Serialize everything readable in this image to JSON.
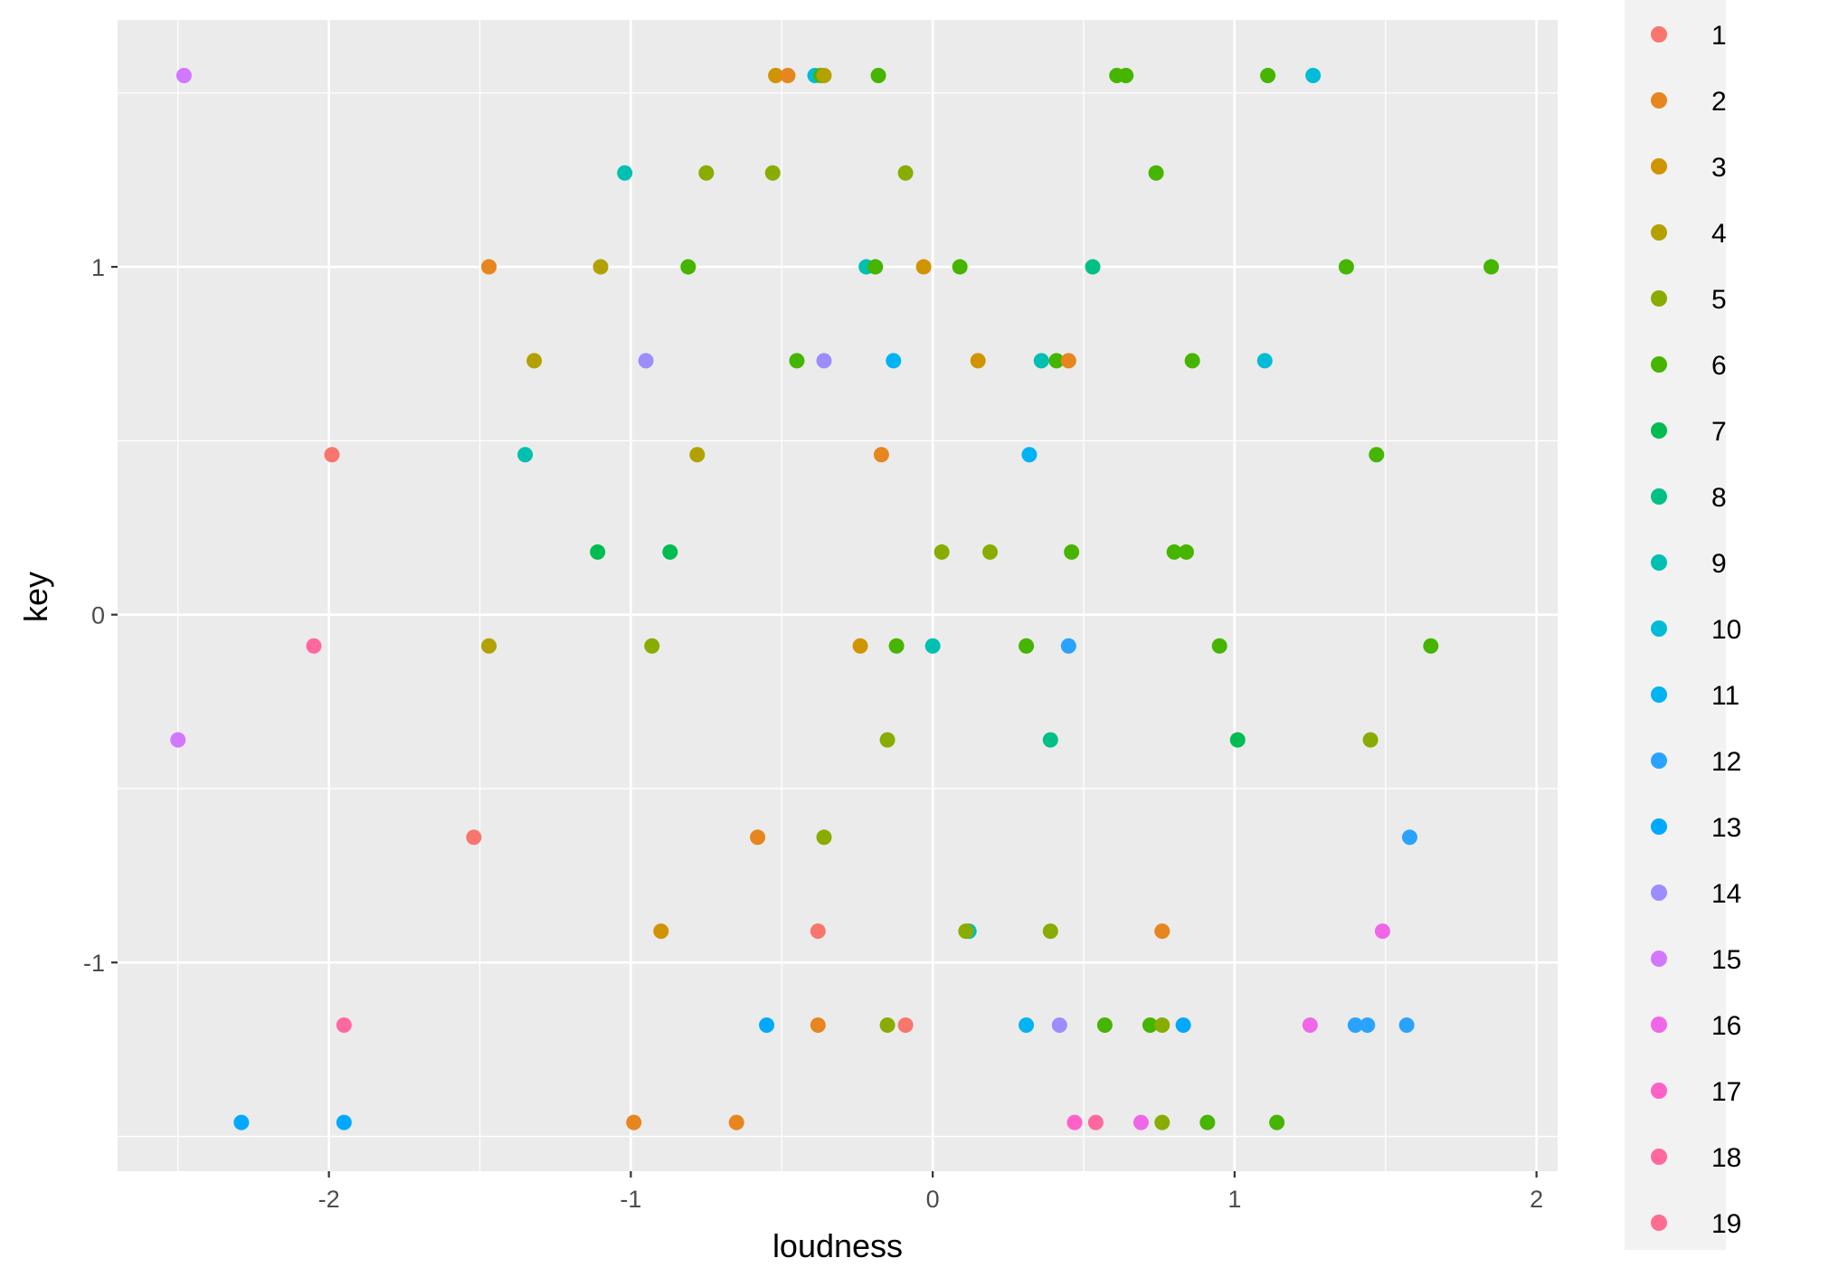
{
  "chart_data": {
    "type": "scatter",
    "title": "",
    "xlabel": "loudness",
    "ylabel": "key",
    "xlim": [
      -2.7,
      2.07
    ],
    "ylim": [
      -1.6,
      1.71
    ],
    "x_ticks": [
      -2,
      -1,
      0,
      1,
      2
    ],
    "x_tick_labels": [
      "-2",
      "-1",
      "0",
      "1",
      "2"
    ],
    "y_ticks": [
      -1,
      0,
      1
    ],
    "y_tick_labels": [
      "-1",
      "0",
      "1"
    ],
    "grid": true,
    "legend_position": "right",
    "legend_labels": [
      "1",
      "2",
      "3",
      "4",
      "5",
      "6",
      "7",
      "8",
      "9",
      "10",
      "11",
      "12",
      "13",
      "14",
      "15",
      "16",
      "17",
      "18",
      "19"
    ],
    "colors": [
      "#F8766D",
      "#E7851E",
      "#D09400",
      "#B2A100",
      "#89AC00",
      "#45B500",
      "#00BC51",
      "#00C087",
      "#00C0B2",
      "#00BCD6",
      "#00B3F2",
      "#29A3FF",
      "#00A9FF",
      "#9C8DFF",
      "#D277FF",
      "#F166E8",
      "#FF61C7",
      "#FF689E",
      "#FF6C91"
    ],
    "points": [
      {
        "group": 15,
        "x": -2.48,
        "y": 1.55
      },
      {
        "group": 3,
        "x": -0.52,
        "y": 1.55
      },
      {
        "group": 2,
        "x": -0.48,
        "y": 1.55
      },
      {
        "group": 10,
        "x": -0.39,
        "y": 1.55
      },
      {
        "group": 6,
        "x": -0.37,
        "y": 1.55
      },
      {
        "group": 4,
        "x": -0.36,
        "y": 1.55
      },
      {
        "group": 6,
        "x": -0.18,
        "y": 1.55
      },
      {
        "group": 6,
        "x": 0.61,
        "y": 1.55
      },
      {
        "group": 6,
        "x": 0.64,
        "y": 1.55
      },
      {
        "group": 6,
        "x": 1.11,
        "y": 1.55
      },
      {
        "group": 10,
        "x": 1.26,
        "y": 1.55
      },
      {
        "group": 9,
        "x": -1.02,
        "y": 1.27
      },
      {
        "group": 5,
        "x": -0.75,
        "y": 1.27
      },
      {
        "group": 5,
        "x": -0.53,
        "y": 1.27
      },
      {
        "group": 5,
        "x": -0.09,
        "y": 1.27
      },
      {
        "group": 6,
        "x": 0.74,
        "y": 1.27
      },
      {
        "group": 2,
        "x": -1.47,
        "y": 1.0
      },
      {
        "group": 4,
        "x": -1.1,
        "y": 1.0
      },
      {
        "group": 6,
        "x": -0.81,
        "y": 1.0
      },
      {
        "group": 9,
        "x": -0.22,
        "y": 1.0
      },
      {
        "group": 6,
        "x": -0.19,
        "y": 1.0
      },
      {
        "group": 3,
        "x": -0.03,
        "y": 1.0
      },
      {
        "group": 6,
        "x": 0.09,
        "y": 1.0
      },
      {
        "group": 8,
        "x": 0.53,
        "y": 1.0
      },
      {
        "group": 6,
        "x": 1.37,
        "y": 1.0
      },
      {
        "group": 6,
        "x": 1.85,
        "y": 1.0
      },
      {
        "group": 4,
        "x": -1.32,
        "y": 0.73
      },
      {
        "group": 14,
        "x": -0.95,
        "y": 0.73
      },
      {
        "group": 6,
        "x": -0.45,
        "y": 0.73
      },
      {
        "group": 14,
        "x": -0.36,
        "y": 0.73
      },
      {
        "group": 11,
        "x": -0.13,
        "y": 0.73
      },
      {
        "group": 3,
        "x": 0.15,
        "y": 0.73
      },
      {
        "group": 9,
        "x": 0.36,
        "y": 0.73
      },
      {
        "group": 6,
        "x": 0.41,
        "y": 0.73
      },
      {
        "group": 2,
        "x": 0.45,
        "y": 0.73
      },
      {
        "group": 6,
        "x": 0.86,
        "y": 0.73
      },
      {
        "group": 10,
        "x": 1.1,
        "y": 0.73
      },
      {
        "group": 1,
        "x": -1.99,
        "y": 0.46
      },
      {
        "group": 9,
        "x": -1.35,
        "y": 0.46
      },
      {
        "group": 4,
        "x": -0.78,
        "y": 0.46
      },
      {
        "group": 2,
        "x": -0.17,
        "y": 0.46
      },
      {
        "group": 11,
        "x": 0.32,
        "y": 0.46
      },
      {
        "group": 6,
        "x": 1.47,
        "y": 0.46
      },
      {
        "group": 7,
        "x": -1.11,
        "y": 0.18
      },
      {
        "group": 7,
        "x": -0.87,
        "y": 0.18
      },
      {
        "group": 5,
        "x": 0.03,
        "y": 0.18
      },
      {
        "group": 5,
        "x": 0.19,
        "y": 0.18
      },
      {
        "group": 6,
        "x": 0.46,
        "y": 0.18
      },
      {
        "group": 6,
        "x": 0.8,
        "y": 0.18
      },
      {
        "group": 6,
        "x": 0.84,
        "y": 0.18
      },
      {
        "group": 18,
        "x": -2.05,
        "y": -0.09
      },
      {
        "group": 4,
        "x": -1.47,
        "y": -0.09
      },
      {
        "group": 5,
        "x": -0.93,
        "y": -0.09
      },
      {
        "group": 3,
        "x": -0.24,
        "y": -0.09
      },
      {
        "group": 6,
        "x": -0.12,
        "y": -0.09
      },
      {
        "group": 9,
        "x": 0.0,
        "y": -0.09
      },
      {
        "group": 6,
        "x": 0.31,
        "y": -0.09
      },
      {
        "group": 12,
        "x": 0.45,
        "y": -0.09
      },
      {
        "group": 6,
        "x": 0.95,
        "y": -0.09
      },
      {
        "group": 6,
        "x": 1.65,
        "y": -0.09
      },
      {
        "group": 15,
        "x": -2.5,
        "y": -0.36
      },
      {
        "group": 5,
        "x": -0.15,
        "y": -0.36
      },
      {
        "group": 8,
        "x": 0.39,
        "y": -0.36
      },
      {
        "group": 7,
        "x": 1.01,
        "y": -0.36
      },
      {
        "group": 5,
        "x": 1.45,
        "y": -0.36
      },
      {
        "group": 1,
        "x": -1.52,
        "y": -0.64
      },
      {
        "group": 2,
        "x": -0.58,
        "y": -0.64
      },
      {
        "group": 5,
        "x": -0.36,
        "y": -0.64
      },
      {
        "group": 12,
        "x": 1.58,
        "y": -0.64
      },
      {
        "group": 3,
        "x": -0.9,
        "y": -0.91
      },
      {
        "group": 1,
        "x": -0.38,
        "y": -0.91
      },
      {
        "group": 9,
        "x": 0.12,
        "y": -0.91
      },
      {
        "group": 5,
        "x": 0.11,
        "y": -0.91
      },
      {
        "group": 5,
        "x": 0.39,
        "y": -0.91
      },
      {
        "group": 2,
        "x": 0.76,
        "y": -0.91
      },
      {
        "group": 16,
        "x": 1.49,
        "y": -0.91
      },
      {
        "group": 18,
        "x": -1.95,
        "y": -1.18
      },
      {
        "group": 13,
        "x": -0.55,
        "y": -1.18
      },
      {
        "group": 2,
        "x": -0.38,
        "y": -1.18
      },
      {
        "group": 5,
        "x": -0.15,
        "y": -1.18
      },
      {
        "group": 1,
        "x": -0.09,
        "y": -1.18
      },
      {
        "group": 11,
        "x": 0.31,
        "y": -1.18
      },
      {
        "group": 14,
        "x": 0.42,
        "y": -1.18
      },
      {
        "group": 6,
        "x": 0.57,
        "y": -1.18
      },
      {
        "group": 6,
        "x": 0.72,
        "y": -1.18
      },
      {
        "group": 5,
        "x": 0.76,
        "y": -1.18
      },
      {
        "group": 13,
        "x": 0.83,
        "y": -1.18
      },
      {
        "group": 16,
        "x": 1.25,
        "y": -1.18
      },
      {
        "group": 12,
        "x": 1.4,
        "y": -1.18
      },
      {
        "group": 12,
        "x": 1.44,
        "y": -1.18
      },
      {
        "group": 12,
        "x": 1.57,
        "y": -1.18
      },
      {
        "group": 13,
        "x": -2.29,
        "y": -1.46
      },
      {
        "group": 13,
        "x": -1.95,
        "y": -1.46
      },
      {
        "group": 2,
        "x": -0.99,
        "y": -1.46
      },
      {
        "group": 2,
        "x": -0.65,
        "y": -1.46
      },
      {
        "group": 17,
        "x": 0.47,
        "y": -1.46
      },
      {
        "group": 18,
        "x": 0.54,
        "y": -1.46
      },
      {
        "group": 16,
        "x": 0.69,
        "y": -1.46
      },
      {
        "group": 5,
        "x": 0.76,
        "y": -1.46
      },
      {
        "group": 6,
        "x": 0.91,
        "y": -1.46
      },
      {
        "group": 6,
        "x": 1.14,
        "y": -1.46
      }
    ]
  }
}
